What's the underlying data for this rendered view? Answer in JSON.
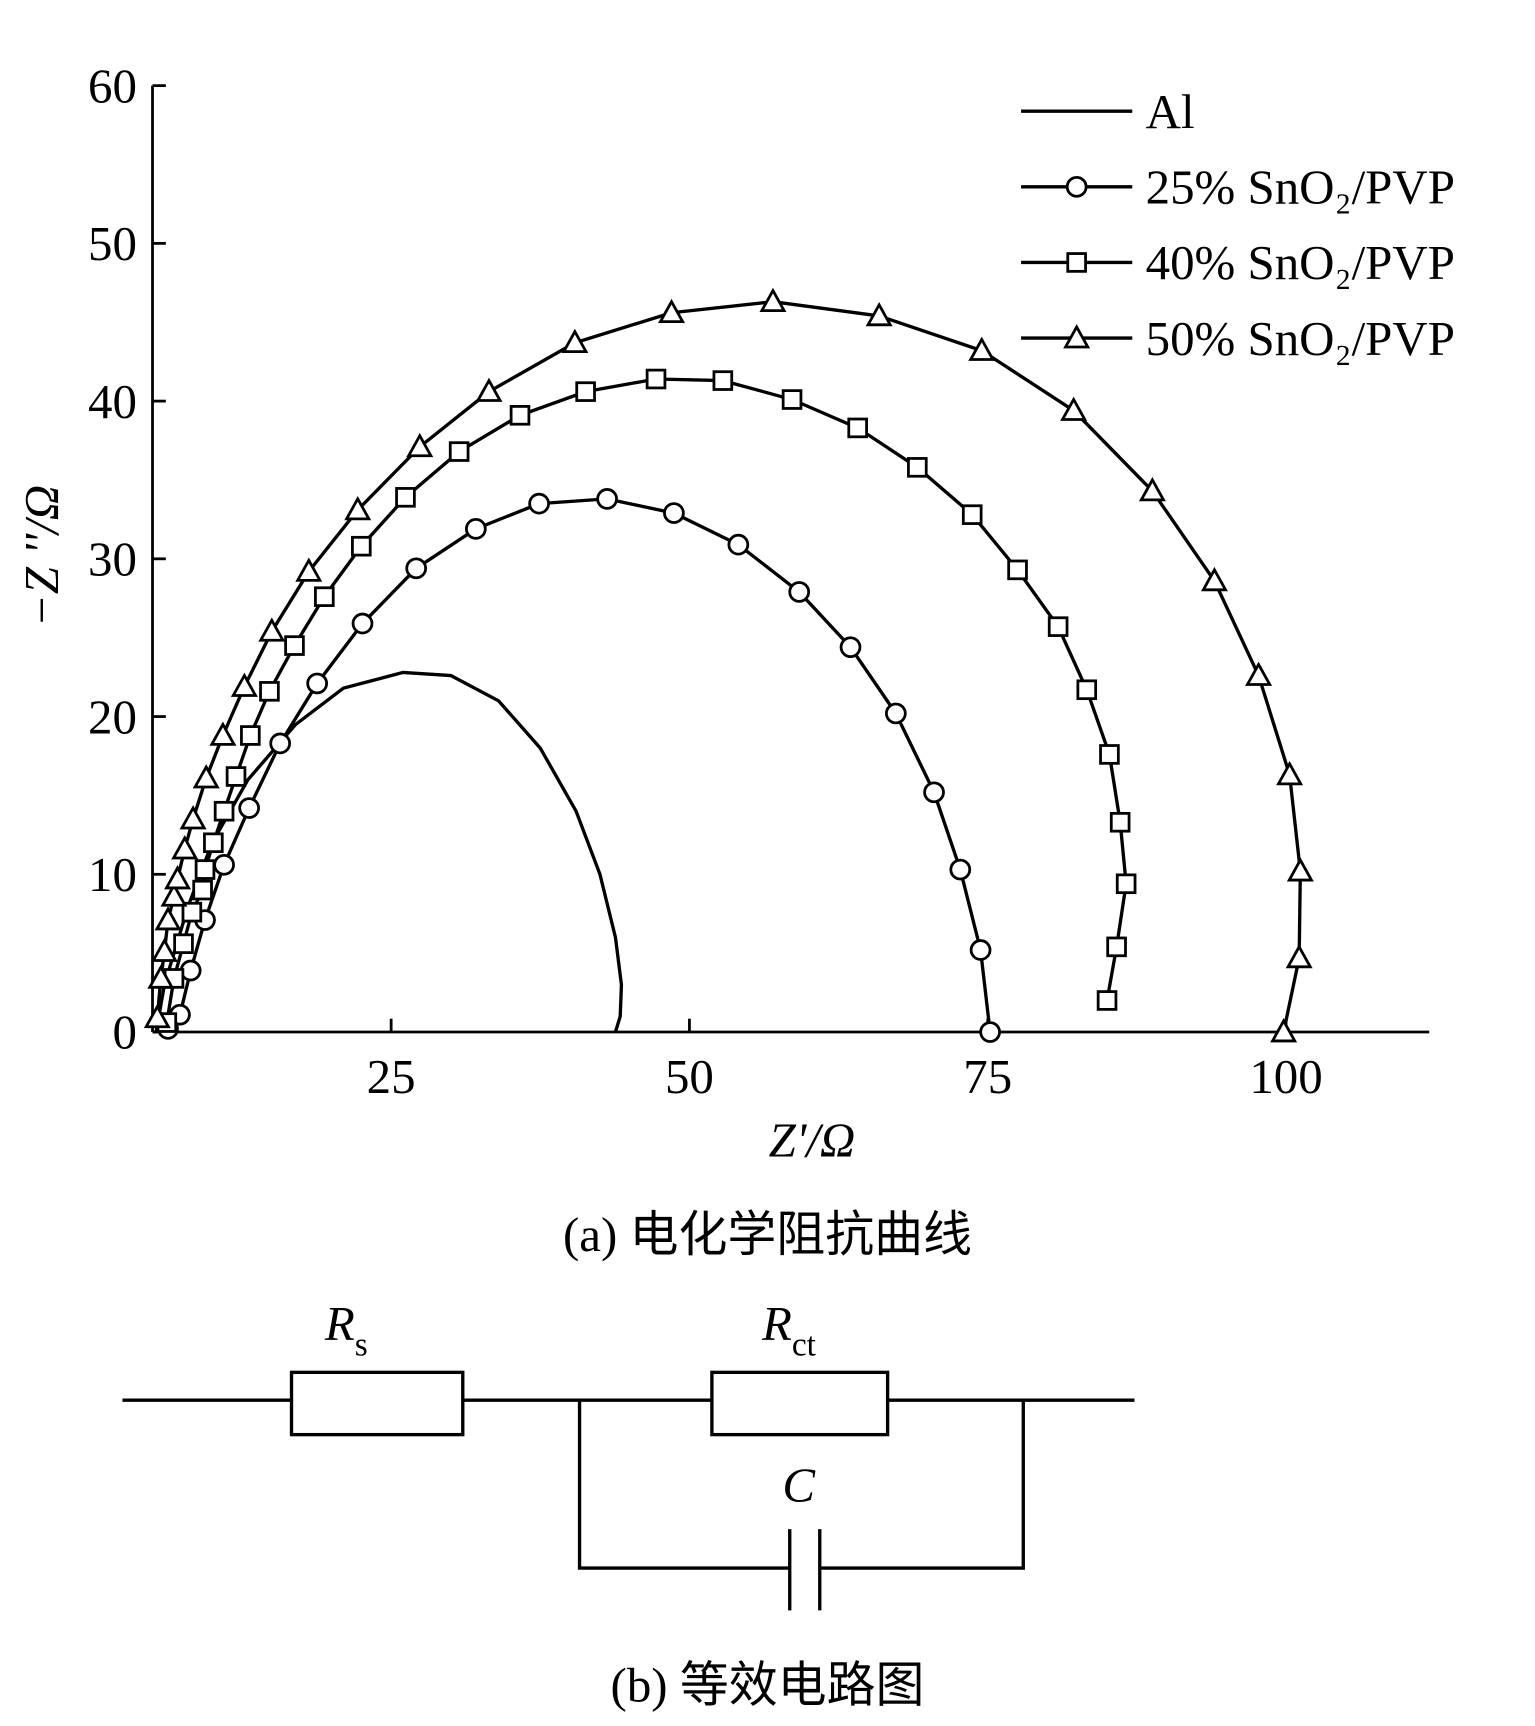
{
  "chart_data": {
    "type": "line",
    "xlabel": "Z'/Ω",
    "ylabel": "−Z ''/Ω",
    "caption": "(a) 电化学阻抗曲线",
    "xlim": [
      5,
      112
    ],
    "ylim": [
      0,
      60
    ],
    "xticks": [
      25,
      50,
      75,
      100
    ],
    "yticks": [
      0,
      10,
      20,
      30,
      40,
      50,
      60
    ],
    "legend": "top-right",
    "series": [
      {
        "name": "Al",
        "color": "#000000",
        "marker": "none",
        "x": [
          5.3,
          6,
          8,
          10,
          13,
          17,
          21,
          26,
          30,
          34,
          37.5,
          40.5,
          42.5,
          43.8,
          44.3,
          44.2,
          43.8
        ],
        "values": [
          0,
          3,
          8,
          12,
          16,
          19.5,
          21.8,
          22.8,
          22.6,
          21,
          18,
          14,
          10,
          6,
          3,
          1,
          0
        ]
      },
      {
        "name": "25% SnO₂/PVP",
        "color": "#000000",
        "marker": "circle",
        "x": [
          6.3,
          7.3,
          8.2,
          9.4,
          11.0,
          13.1,
          15.7,
          18.8,
          22.6,
          27.1,
          32.1,
          37.4,
          43.1,
          48.7,
          54.1,
          59.2,
          63.5,
          67.3,
          70.5,
          72.7,
          74.4,
          75.2
        ],
        "values": [
          0.2,
          1.1,
          3.9,
          7.1,
          10.6,
          14.2,
          18.3,
          22.1,
          25.9,
          29.4,
          31.9,
          33.5,
          33.8,
          32.9,
          30.9,
          27.9,
          24.4,
          20.2,
          15.2,
          10.3,
          5.2,
          0
        ]
      },
      {
        "name": "40% SnO₂/PVP",
        "color": "#000000",
        "marker": "square",
        "x": [
          6.2,
          6.8,
          7.6,
          8.3,
          9.2,
          9.4,
          10.1,
          11.0,
          12.0,
          13.2,
          14.8,
          16.9,
          19.4,
          22.5,
          26.2,
          30.7,
          35.8,
          41.3,
          47.2,
          52.8,
          58.6,
          64.1,
          69.1,
          73.7,
          77.5,
          80.9,
          83.3,
          85.2,
          86.1,
          86.6,
          85.8,
          85.0
        ],
        "values": [
          0.6,
          3.4,
          5.6,
          7.6,
          9.0,
          10.3,
          12.0,
          14.0,
          16.2,
          18.8,
          21.6,
          24.5,
          27.6,
          30.8,
          33.9,
          36.8,
          39.1,
          40.6,
          41.4,
          41.3,
          40.1,
          38.3,
          35.8,
          32.8,
          29.3,
          25.7,
          21.7,
          17.6,
          13.3,
          9.4,
          5.4,
          2.0
        ]
      },
      {
        "name": "50% SnO₂/PVP",
        "color": "#000000",
        "marker": "triangle",
        "x": [
          5.4,
          5.7,
          6.0,
          6.3,
          6.8,
          7.1,
          7.7,
          8.4,
          9.5,
          10.9,
          12.7,
          15.0,
          18.1,
          22.2,
          27.4,
          33.2,
          40.4,
          48.5,
          57.0,
          65.9,
          74.5,
          82.2,
          88.8,
          94.0,
          97.7,
          100.3,
          101.2,
          101.1,
          99.8
        ],
        "values": [
          0.9,
          3.4,
          5.1,
          7.1,
          8.6,
          9.7,
          11.6,
          13.5,
          16.1,
          18.8,
          21.9,
          25.4,
          29.2,
          33.1,
          37.1,
          40.6,
          43.7,
          45.6,
          46.3,
          45.4,
          43.2,
          39.4,
          34.3,
          28.6,
          22.6,
          16.3,
          10.2,
          4.7,
          0
        ]
      }
    ]
  },
  "circuit": {
    "caption": "(b) 等效电路图",
    "rs": {
      "symbol": "R",
      "subscript": "s"
    },
    "rct": {
      "symbol": "R",
      "subscript": "ct"
    },
    "c": "C"
  }
}
